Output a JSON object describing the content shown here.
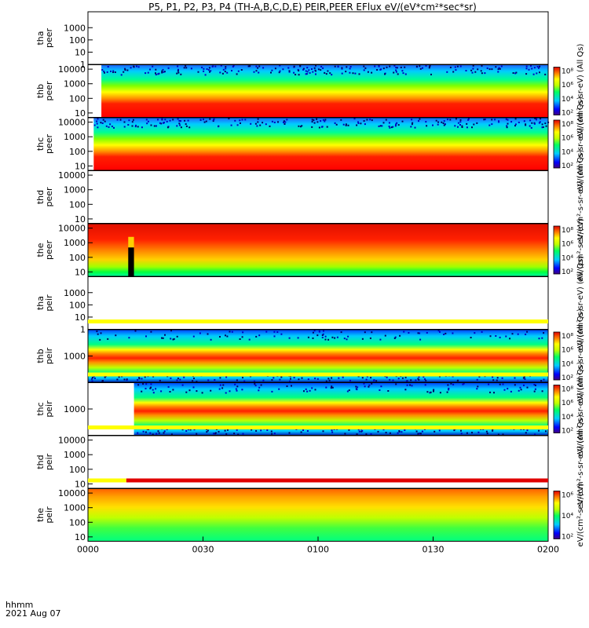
{
  "chart_data": {
    "type": "heatmap",
    "title": "P5, P1, P2, P3, P4 (TH-A,B,C,D,E) PEIR,PEER EFlux eV/(eV*cm²*sec*sr)",
    "time_axis": {
      "label_line1": "hhmm",
      "label_line2": "2021 Aug 07",
      "ticks": [
        "0000",
        "0030",
        "0100",
        "0130",
        "0200"
      ],
      "range_minutes": [
        0,
        120
      ]
    },
    "panels": [
      {
        "id": "tha_peer",
        "label1": "tha",
        "label2": "peer",
        "yticks": [
          "1000",
          "100",
          "10",
          "1"
        ],
        "yrange": [
          1,
          20000
        ],
        "has_data": false,
        "colorbar_label": ""
      },
      {
        "id": "thb_peer",
        "label1": "thb",
        "label2": "peer",
        "yticks": [
          "10000",
          "1000",
          "100",
          "10"
        ],
        "yrange": [
          5,
          20000
        ],
        "has_data": true,
        "data_start_min": 3.5,
        "profile": "peer_std",
        "colorbar_label": "eV/(cm²-s-sr-eV) (All Qs)",
        "cbar_ticks": [
          "10⁸",
          "10⁶",
          "10⁴",
          "10²"
        ]
      },
      {
        "id": "thc_peer",
        "label1": "thc",
        "label2": "peer",
        "yticks": [
          "10000",
          "1000",
          "100",
          "10"
        ],
        "yrange": [
          5,
          20000
        ],
        "has_data": true,
        "data_start_min": 1.5,
        "profile": "peer_std",
        "colorbar_label": "eV/(cm²-s-sr-eV) (All Qs)",
        "cbar_ticks": [
          "10⁸",
          "10⁶",
          "10⁴",
          "10²"
        ]
      },
      {
        "id": "thd_peer",
        "label1": "thd",
        "label2": "peer",
        "yticks": [
          "10000",
          "1000",
          "100",
          "10"
        ],
        "yrange": [
          5,
          20000
        ],
        "has_data": false,
        "colorbar_label": "eV/(cm²-s-sr-eV) (All Qs)"
      },
      {
        "id": "the_peer",
        "label1": "the",
        "label2": "peer",
        "yticks": [
          "10000",
          "1000",
          "100",
          "10"
        ],
        "yrange": [
          5,
          20000
        ],
        "has_data": true,
        "data_start_min": 0,
        "profile": "peer_hot",
        "gap_min": [
          10.5,
          12
        ],
        "colorbar_label": "eV/(cm²-s-sr-eV)",
        "cbar_ticks": [
          "10⁸",
          "10⁶",
          "10⁴",
          "10²"
        ]
      },
      {
        "id": "tha_peir",
        "label1": "tha",
        "label2": "peir",
        "yticks": [
          "1000",
          "100",
          "10",
          "1"
        ],
        "yrange": [
          1,
          20000
        ],
        "has_data": false,
        "colorbar_label": "eV/(cm²-s-sr-eV) (All Qs)"
      },
      {
        "id": "thb_peir",
        "label1": "thb",
        "label2": "peir",
        "yticks": [
          "1000"
        ],
        "yrange": [
          200,
          5000
        ],
        "has_data": true,
        "data_start_min": 0,
        "profile": "peir_band",
        "colorbar_label": "eV/(cm²-s-sr-eV) (All Qs)",
        "cbar_ticks": [
          "10⁸",
          "10⁶",
          "10⁴",
          "10²"
        ]
      },
      {
        "id": "thc_peir",
        "label1": "thc",
        "label2": "peir",
        "yticks": [
          "1000"
        ],
        "yrange": [
          200,
          5000
        ],
        "has_data": true,
        "data_start_min": 12,
        "profile": "peir_band",
        "colorbar_label": "eV/(cm²-s-sr-eV) (All Qs)",
        "cbar_ticks": [
          "10⁸",
          "10⁶",
          "10⁴",
          "10²"
        ]
      },
      {
        "id": "thd_peir",
        "label1": "thd",
        "label2": "peir",
        "yticks": [
          "10000",
          "1000",
          "100",
          "10"
        ],
        "yrange": [
          5,
          20000
        ],
        "has_data": false,
        "colorbar_label": "eV/(cm²-s-sr-eV) (All Qs)"
      },
      {
        "id": "the_peir",
        "label1": "the",
        "label2": "peir",
        "yticks": [
          "10000",
          "1000",
          "100",
          "10"
        ],
        "yrange": [
          5,
          20000
        ],
        "has_data": true,
        "data_start_min": 0,
        "profile": "peir_wide",
        "colorbar_label": "eV/(cm²-s-sr-eV)",
        "cbar_ticks": [
          "10⁶",
          "10⁴",
          "10²"
        ]
      }
    ],
    "colors": {
      "yellow_bar": "#ffff00",
      "red_bar": "#e00000"
    }
  }
}
